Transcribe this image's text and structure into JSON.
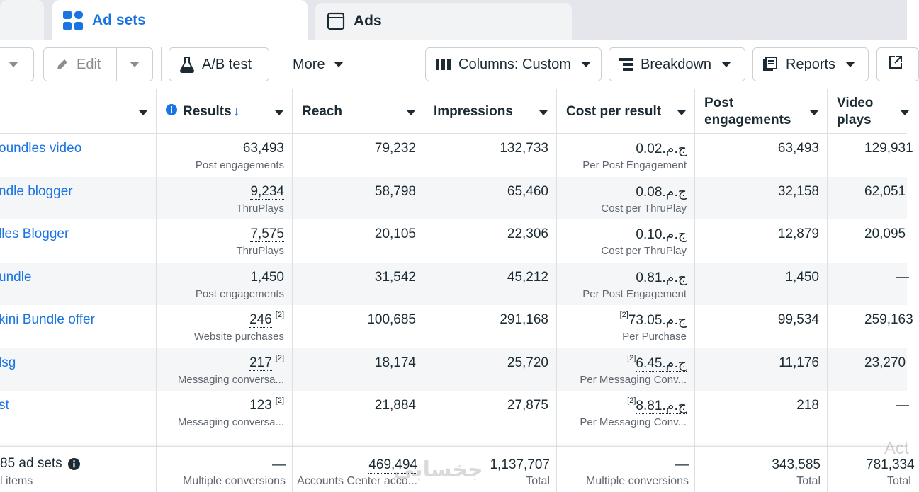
{
  "tabs": {
    "adsets": "Ad sets",
    "ads": "Ads"
  },
  "toolbar": {
    "edit": "Edit",
    "ab_test": "A/B test",
    "more": "More",
    "columns": "Columns: Custom",
    "breakdown": "Breakdown",
    "reports": "Reports"
  },
  "columns": {
    "results": "Results",
    "reach": "Reach",
    "impressions": "Impressions",
    "cost_per_result": "Cost per result",
    "post_engagements_1": "Post",
    "post_engagements_2": "engagements",
    "video_plays_1": "Video",
    "video_plays_2": "plays"
  },
  "rows": [
    {
      "name": "oundles video",
      "result": "63,493",
      "result_sup": "",
      "result_type": "Post engagements",
      "reach": "79,232",
      "impressions": "132,733",
      "cost": "ج.م.0.02",
      "cost_sup": "",
      "cost_type": "Per Post Engagement",
      "engagements": "63,493",
      "video_plays": "129,931"
    },
    {
      "name": "ndle blogger",
      "result": "9,234",
      "result_sup": "",
      "result_type": "ThruPlays",
      "reach": "58,798",
      "impressions": "65,460",
      "cost": "ج.م.0.08",
      "cost_sup": "",
      "cost_type": "Cost per ThruPlay",
      "engagements": "32,158",
      "video_plays": "62,051"
    },
    {
      "name": "lles Blogger",
      "result": "7,575",
      "result_sup": "",
      "result_type": "ThruPlays",
      "reach": "20,105",
      "impressions": "22,306",
      "cost": "ج.م.0.10",
      "cost_sup": "",
      "cost_type": "Cost per ThruPlay",
      "engagements": "12,879",
      "video_plays": "20,095"
    },
    {
      "name": "undle",
      "result": "1,450",
      "result_sup": "",
      "result_type": "Post engagements",
      "reach": "31,542",
      "impressions": "45,212",
      "cost": "ج.م.0.81",
      "cost_sup": "",
      "cost_type": "Per Post Engagement",
      "engagements": "1,450",
      "video_plays": "—"
    },
    {
      "name": "kini Bundle offer",
      "result": "246",
      "result_sup": "[2]",
      "result_type": "Website purchases",
      "reach": "100,685",
      "impressions": "291,168",
      "cost": "ج.م.73.05",
      "cost_sup": "[2]",
      "cost_type": "Per Purchase",
      "engagements": "99,534",
      "video_plays": "259,163"
    },
    {
      "name": "lsg",
      "result": "217",
      "result_sup": "[2]",
      "result_type": "Messaging conversa...",
      "reach": "18,174",
      "impressions": "25,720",
      "cost": "ج.م.6.45",
      "cost_sup": "[2]",
      "cost_type": "Per Messaging Conv...",
      "engagements": "11,176",
      "video_plays": "23,270"
    },
    {
      "name": "st",
      "result": "123",
      "result_sup": "[2]",
      "result_type": "Messaging conversa...",
      "reach": "21,884",
      "impressions": "27,875",
      "cost": "ج.م.8.81",
      "cost_sup": "[2]",
      "cost_type": "Per Messaging Conv...",
      "engagements": "218",
      "video_plays": "—"
    }
  ],
  "footer": {
    "count": "85 ad sets",
    "items": "l items",
    "results": "—",
    "results_sub": "Multiple conversions",
    "reach": "469,494",
    "reach_sub": "Accounts Center acco...",
    "impressions": "1,137,707",
    "impressions_sub": "Total",
    "cost": "—",
    "cost_sub": "Multiple conversions",
    "engagements": "343,585",
    "engagements_sub": "Total",
    "video_plays": "781,334",
    "video_plays_sub": "Total"
  },
  "watermark": "جخسابي",
  "activate": "Act",
  "colors": {
    "accent": "#1b74e4",
    "text": "#1c2b33",
    "muted": "#606770",
    "border": "#dddfe2",
    "alt_row": "#f5f6f7"
  },
  "icons": [
    "grid-icon",
    "ad-window-icon",
    "pencil-icon",
    "flask-icon",
    "columns-icon",
    "breakdown-icon",
    "reports-icon",
    "export-icon",
    "info-icon",
    "sort-arrow-icon"
  ]
}
